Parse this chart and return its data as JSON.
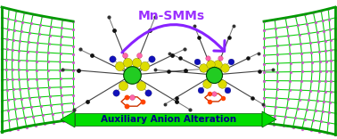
{
  "title": "Mn-SMMs",
  "title_color": "#9B30FF",
  "arrow_label": "Auxiliary Anion Alteration",
  "arrow_color": "#00DD00",
  "arrow_text_color": "#000080",
  "bg_color": "#FFFFFF",
  "fig_width": 3.78,
  "fig_height": 1.56,
  "dpi": 100,
  "plane_color": "#00CC00",
  "dot_color": "#CC55CC",
  "mn_atom_color": "#22CC22",
  "curved_arrow_color": "#8822FF"
}
